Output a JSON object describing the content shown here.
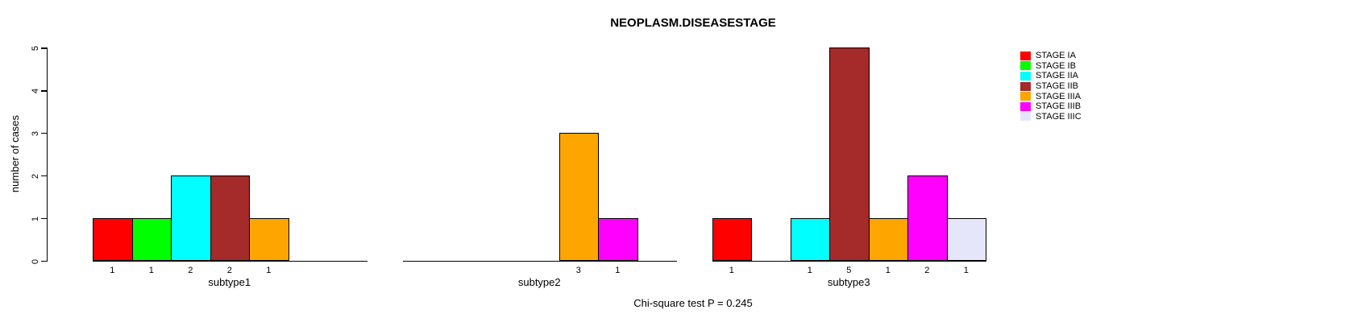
{
  "chart_data": {
    "type": "bar",
    "title": "NEOPLASM.DISEASESTAGE",
    "xlabel": "",
    "ylabel": "number of cases",
    "ylim": [
      0,
      5
    ],
    "yticks": [
      0,
      1,
      2,
      3,
      4,
      5
    ],
    "grid": false,
    "legend_position": "right",
    "bar_value_labels": true,
    "annotation": "Chi-square test P = 0.245",
    "stages": [
      {
        "label": "STAGE IA",
        "color": "#FF0000"
      },
      {
        "label": "STAGE IB",
        "color": "#00FF00"
      },
      {
        "label": "STAGE IIA",
        "color": "#00FFFF"
      },
      {
        "label": "STAGE IIB",
        "color": "#A52A2A"
      },
      {
        "label": "STAGE IIIA",
        "color": "#FFA500"
      },
      {
        "label": "STAGE IIIB",
        "color": "#FF00FF"
      },
      {
        "label": "STAGE IIIC",
        "color": "#E6E6FA"
      }
    ],
    "categories": [
      "subtype1",
      "subtype2",
      "subtype3"
    ],
    "series": [
      {
        "name": "STAGE IA",
        "values": [
          1,
          null,
          1
        ]
      },
      {
        "name": "STAGE IB",
        "values": [
          1,
          null,
          null
        ]
      },
      {
        "name": "STAGE IIA",
        "values": [
          2,
          null,
          1
        ]
      },
      {
        "name": "STAGE IIB",
        "values": [
          2,
          null,
          5
        ]
      },
      {
        "name": "STAGE IIIA",
        "values": [
          1,
          3,
          1
        ]
      },
      {
        "name": "STAGE IIIB",
        "values": [
          null,
          1,
          2
        ]
      },
      {
        "name": "STAGE IIIC",
        "values": [
          null,
          null,
          1
        ]
      }
    ]
  }
}
